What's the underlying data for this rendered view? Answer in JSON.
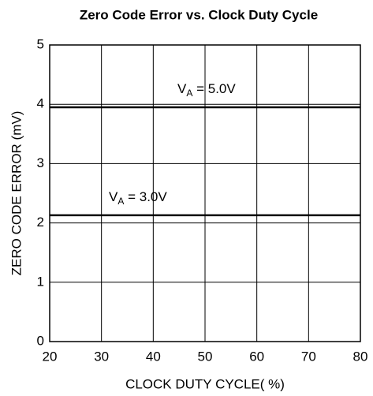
{
  "chart_data": {
    "type": "line",
    "title": "Zero Code Error vs. Clock Duty Cycle",
    "x_label": "CLOCK DUTY CYCLE( %)",
    "y_label": "ZERO CODE ERROR (mV)",
    "x": [
      20,
      30,
      40,
      50,
      60,
      70,
      80
    ],
    "series": [
      {
        "name_parts": [
          "V",
          "A",
          " = 5.0V"
        ],
        "color": "#000000",
        "values": [
          3.95,
          3.95,
          3.95,
          3.95,
          3.95,
          3.95,
          3.95
        ]
      },
      {
        "name_parts": [
          "V",
          "A",
          " = 3.0V"
        ],
        "color": "#000000",
        "values": [
          2.13,
          2.13,
          2.13,
          2.13,
          2.13,
          2.13,
          2.13
        ]
      }
    ],
    "xlim": [
      20,
      80
    ],
    "xticks": [
      20,
      30,
      40,
      50,
      60,
      70,
      80
    ],
    "ylim": [
      0,
      5
    ],
    "yticks": [
      0,
      1,
      2,
      3,
      4,
      5
    ],
    "grid": true
  }
}
